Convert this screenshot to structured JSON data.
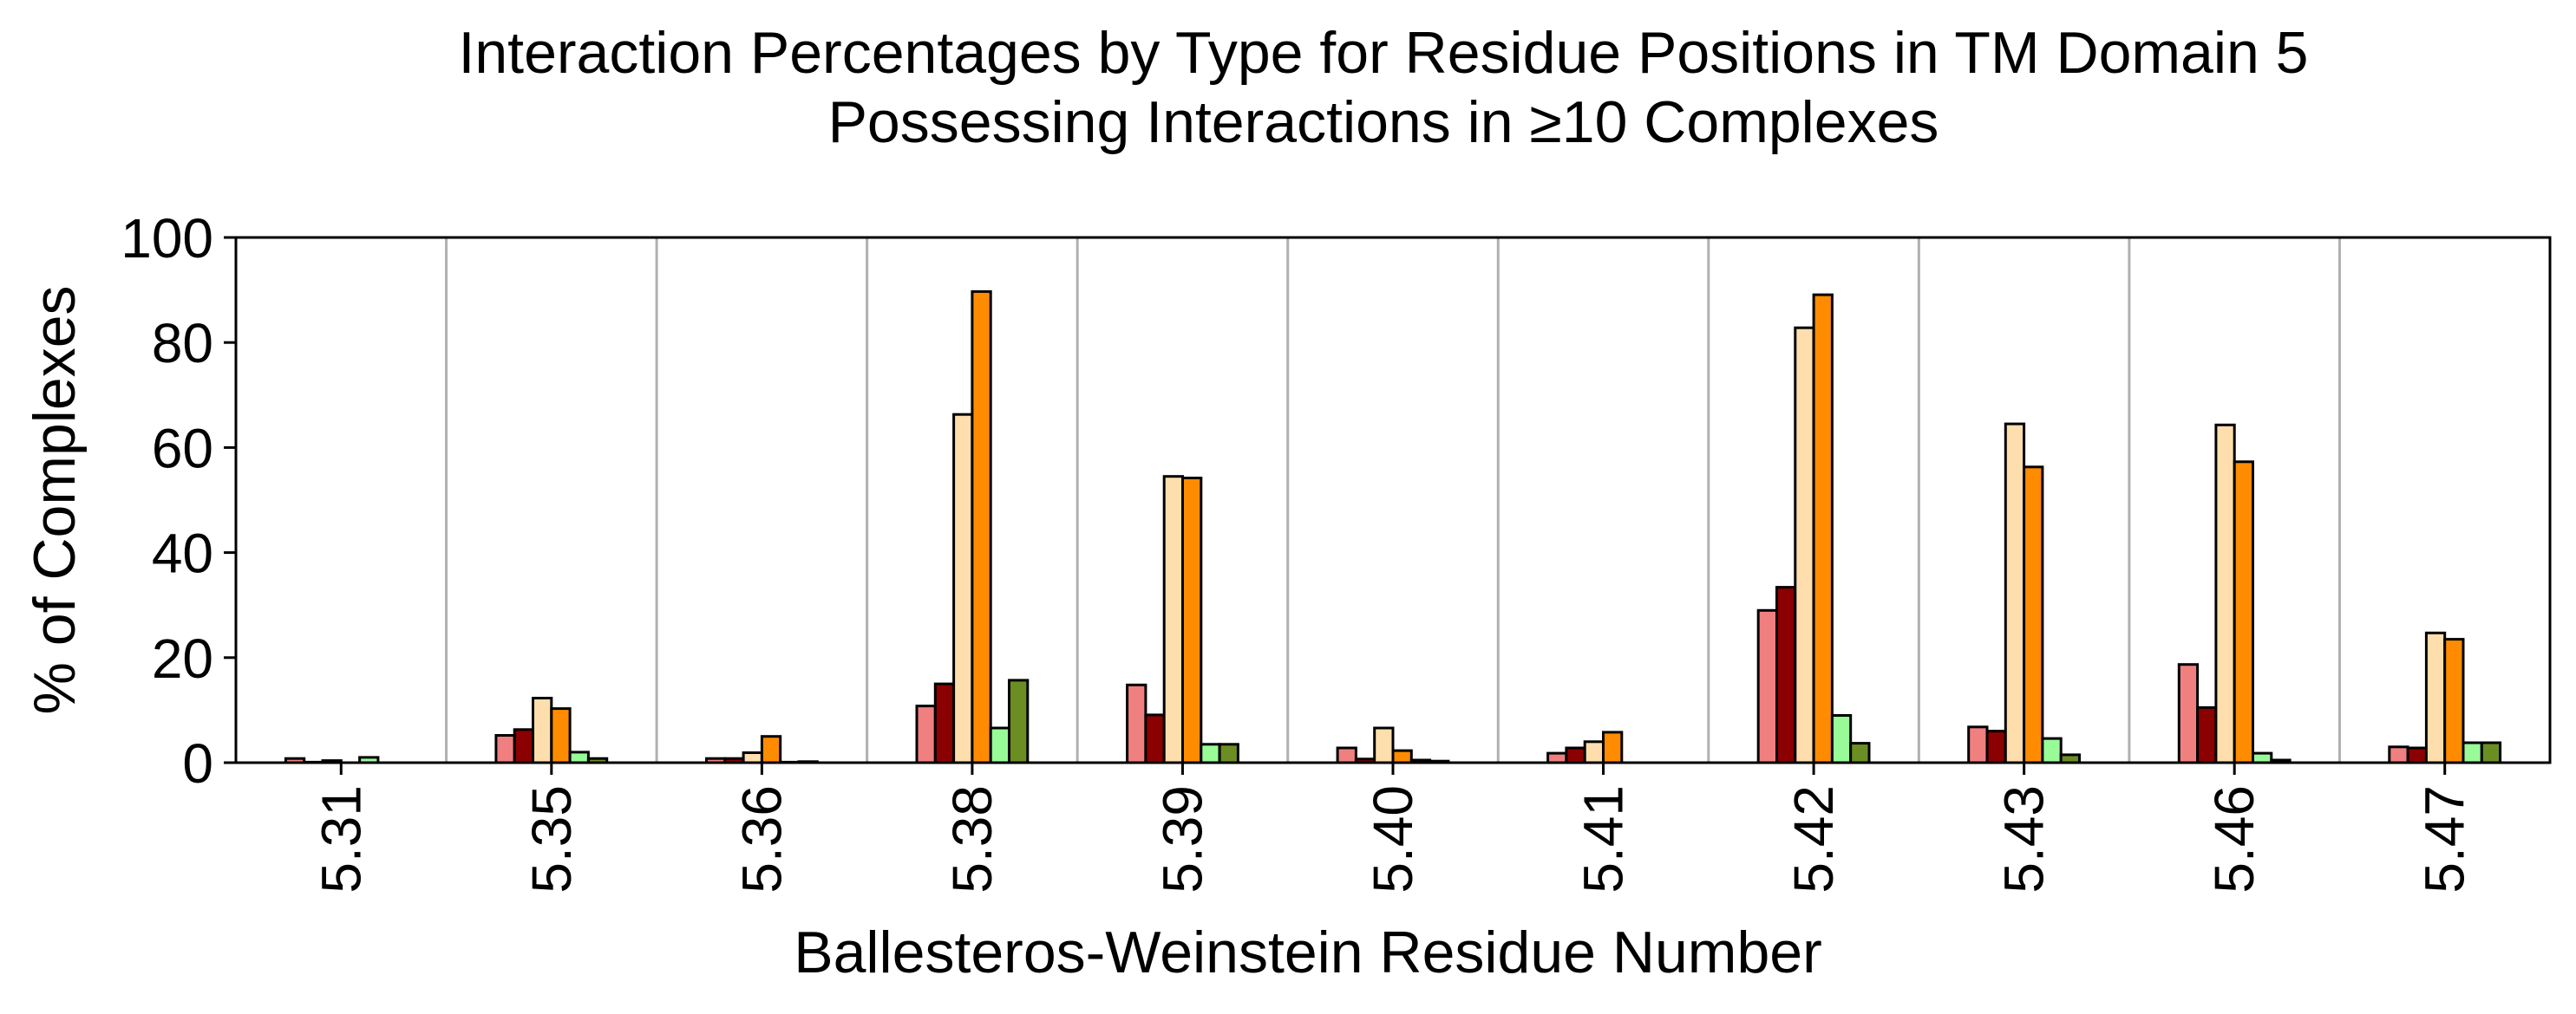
{
  "chart_data": {
    "type": "bar",
    "title": [
      "Interaction Percentages by Type for Residue Positions in TM Domain 5",
      "Possessing Interactions in ≥10 Complexes"
    ],
    "xlabel": "Ballesteros-Weinstein Residue Number",
    "ylabel": "% of Complexes",
    "ylim": [
      0,
      100
    ],
    "yticks": [
      "0",
      "20",
      "40",
      "60",
      "80",
      "100"
    ],
    "grid": "vertical separators between categories",
    "legend": "none",
    "categories": [
      "5.31",
      "5.35",
      "5.36",
      "5.38",
      "5.39",
      "5.40",
      "5.41",
      "5.42",
      "5.43",
      "5.46",
      "5.47"
    ],
    "series": [
      {
        "color": "#f08080",
        "values": [
          0.8,
          5.2,
          0.8,
          10.8,
          14.8,
          2.8,
          1.8,
          29.0,
          6.8,
          18.7,
          3.0
        ]
      },
      {
        "color": "#8b0000",
        "values": [
          0.1,
          6.3,
          0.8,
          15.0,
          9.1,
          0.7,
          2.8,
          33.4,
          6.0,
          10.5,
          2.8
        ]
      },
      {
        "color": "#ffdead",
        "values": [
          0.4,
          12.3,
          1.9,
          66.3,
          54.5,
          6.6,
          4.0,
          82.8,
          64.5,
          64.3,
          24.7
        ]
      },
      {
        "color": "#ff8c00",
        "values": [
          0.0,
          10.3,
          5.0,
          89.7,
          54.2,
          2.3,
          5.8,
          89.1,
          56.3,
          57.3,
          23.5
        ]
      },
      {
        "color": "#98fb98",
        "values": [
          1.0,
          2.0,
          0.1,
          6.6,
          3.5,
          0.5,
          0.0,
          9.0,
          4.6,
          1.8,
          3.8
        ]
      },
      {
        "color": "#6b8e23",
        "values": [
          0.0,
          0.8,
          0.2,
          15.7,
          3.5,
          0.3,
          0.0,
          3.7,
          1.5,
          0.5,
          3.8
        ]
      }
    ]
  }
}
